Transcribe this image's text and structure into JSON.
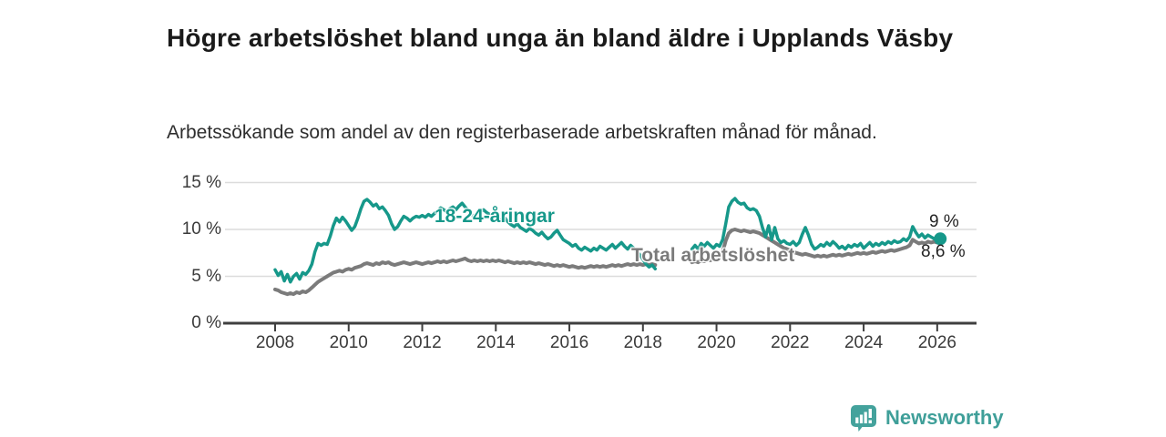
{
  "chart_data": {
    "type": "line",
    "title": "Högre arbetslöshet bland unga än bland äldre i Upplands Väsby",
    "subtitle": "Arbetssökande som andel av den registerbaserade arbetskraften månad för månad.",
    "unit": "%",
    "ylim": [
      0,
      15
    ],
    "xlim": [
      2006.6,
      2027.1
    ],
    "grid": "horizontal",
    "legend_position": "inline-labels",
    "start": {
      "year": 2008,
      "month": 1
    },
    "frequency": "monthly",
    "y_ticks": [
      {
        "value": 0,
        "label": "0 %"
      },
      {
        "value": 5,
        "label": "5 %"
      },
      {
        "value": 10,
        "label": "10 %"
      },
      {
        "value": 15,
        "label": "15 %"
      }
    ],
    "x_ticks": [
      {
        "value": 2008,
        "label": "2008"
      },
      {
        "value": 2010,
        "label": "2010"
      },
      {
        "value": 2012,
        "label": "2012"
      },
      {
        "value": 2014,
        "label": "2014"
      },
      {
        "value": 2016,
        "label": "2016"
      },
      {
        "value": 2018,
        "label": "2018"
      },
      {
        "value": 2020,
        "label": "2020"
      },
      {
        "value": 2022,
        "label": "2022"
      },
      {
        "value": 2024,
        "label": "2024"
      },
      {
        "value": 2026,
        "label": "2026"
      }
    ],
    "series": [
      {
        "name": "18-24-åringar",
        "color": "#16988a",
        "stroke_width": 3.5,
        "end_dot": true,
        "end_label": "9 %",
        "values": [
          5.7,
          5.1,
          5.5,
          4.5,
          5.2,
          4.4,
          5.0,
          5.3,
          4.7,
          5.4,
          5.2,
          5.6,
          6.3,
          7.6,
          8.5,
          8.3,
          8.5,
          8.4,
          9.3,
          10.4,
          11.2,
          10.8,
          11.3,
          10.9,
          10.4,
          9.9,
          10.3,
          11.2,
          12.2,
          13.0,
          13.2,
          12.9,
          12.5,
          12.7,
          12.2,
          12.4,
          12.0,
          11.5,
          10.6,
          10.0,
          10.3,
          10.9,
          11.4,
          11.2,
          10.9,
          11.2,
          11.4,
          11.3,
          11.5,
          11.3,
          11.6,
          11.4,
          11.7,
          12.0,
          12.3,
          12.1,
          11.9,
          12.2,
          12.4,
          12.1,
          12.5,
          12.8,
          12.4,
          12.0,
          11.6,
          11.3,
          11.5,
          11.9,
          12.1,
          11.8,
          11.6,
          11.7,
          11.4,
          11.1,
          10.9,
          11.2,
          10.8,
          10.5,
          10.3,
          10.6,
          10.2,
          10.0,
          9.8,
          10.1,
          9.9,
          9.6,
          9.4,
          9.7,
          9.3,
          9.0,
          9.2,
          9.6,
          9.9,
          9.4,
          8.9,
          8.7,
          8.5,
          8.2,
          8.4,
          8.0,
          7.8,
          8.1,
          7.9,
          7.7,
          8.0,
          7.8,
          8.2,
          8.0,
          7.8,
          8.1,
          8.4,
          8.0,
          8.3,
          8.6,
          8.2,
          7.9,
          8.3,
          8.0,
          7.6,
          7.3,
          6.8,
          6.3,
          6.0,
          6.2,
          5.8,
          null,
          null,
          null,
          null,
          null,
          null,
          null,
          null,
          null,
          null,
          null,
          7.9,
          8.3,
          7.9,
          8.5,
          8.2,
          8.6,
          8.3,
          8.0,
          8.4,
          8.2,
          8.9,
          10.6,
          12.4,
          13.0,
          13.3,
          12.9,
          12.7,
          12.8,
          12.3,
          12.1,
          12.2,
          12.0,
          11.4,
          10.2,
          9.2,
          10.4,
          8.9,
          10.2,
          9.0,
          8.6,
          8.8,
          8.5,
          8.4,
          8.7,
          8.3,
          8.6,
          9.5,
          10.2,
          9.4,
          8.4,
          7.9,
          8.1,
          8.4,
          8.2,
          8.6,
          8.3,
          8.7,
          8.4,
          8.0,
          8.2,
          7.9,
          8.3,
          8.1,
          8.4,
          8.2,
          8.5,
          8.0,
          8.3,
          8.6,
          8.2,
          8.5,
          8.3,
          8.6,
          8.4,
          8.7,
          8.5,
          8.8,
          8.6,
          8.7,
          9.0,
          8.8,
          9.2,
          10.3,
          9.7,
          9.2,
          9.5,
          9.1,
          9.4,
          9.2,
          9.0,
          9.1,
          9.0
        ]
      },
      {
        "name": "Total arbetslöshet",
        "color": "#7b7b7b",
        "stroke_width": 4,
        "end_dot": false,
        "end_label": "8,6 %",
        "values": [
          3.6,
          3.5,
          3.3,
          3.2,
          3.1,
          3.2,
          3.1,
          3.3,
          3.2,
          3.4,
          3.3,
          3.5,
          3.8,
          4.1,
          4.4,
          4.6,
          4.8,
          5.0,
          5.2,
          5.4,
          5.5,
          5.6,
          5.5,
          5.7,
          5.8,
          5.7,
          5.9,
          6.0,
          6.1,
          6.3,
          6.4,
          6.3,
          6.2,
          6.4,
          6.3,
          6.5,
          6.4,
          6.5,
          6.3,
          6.2,
          6.3,
          6.4,
          6.5,
          6.4,
          6.3,
          6.4,
          6.5,
          6.4,
          6.3,
          6.4,
          6.5,
          6.4,
          6.5,
          6.6,
          6.5,
          6.6,
          6.5,
          6.6,
          6.7,
          6.6,
          6.7,
          6.8,
          6.9,
          6.7,
          6.6,
          6.7,
          6.6,
          6.7,
          6.6,
          6.7,
          6.6,
          6.7,
          6.6,
          6.7,
          6.6,
          6.5,
          6.6,
          6.5,
          6.4,
          6.5,
          6.4,
          6.5,
          6.4,
          6.5,
          6.4,
          6.3,
          6.4,
          6.3,
          6.2,
          6.3,
          6.2,
          6.1,
          6.2,
          6.1,
          6.2,
          6.1,
          6.0,
          6.1,
          6.0,
          5.9,
          6.0,
          5.9,
          6.0,
          6.1,
          6.0,
          6.1,
          6.0,
          6.1,
          6.0,
          6.1,
          6.2,
          6.1,
          6.2,
          6.1,
          6.2,
          6.3,
          6.2,
          6.3,
          6.2,
          6.3,
          6.2,
          6.3,
          6.2,
          6.3,
          6.2,
          null,
          null,
          null,
          null,
          null,
          null,
          null,
          null,
          null,
          null,
          null,
          6.5,
          6.6,
          6.5,
          6.7,
          6.6,
          6.8,
          6.7,
          6.9,
          7.0,
          7.1,
          7.6,
          8.8,
          9.6,
          9.9,
          10.0,
          9.9,
          9.8,
          9.9,
          9.8,
          9.7,
          9.8,
          9.7,
          9.6,
          9.4,
          9.2,
          9.0,
          8.8,
          8.6,
          8.4,
          8.2,
          8.0,
          7.9,
          7.8,
          7.6,
          7.5,
          7.4,
          7.3,
          7.4,
          7.3,
          7.2,
          7.1,
          7.2,
          7.1,
          7.2,
          7.1,
          7.2,
          7.3,
          7.2,
          7.3,
          7.2,
          7.3,
          7.4,
          7.3,
          7.4,
          7.5,
          7.4,
          7.5,
          7.4,
          7.5,
          7.6,
          7.5,
          7.6,
          7.7,
          7.6,
          7.7,
          7.8,
          7.7,
          7.8,
          7.9,
          8.0,
          8.1,
          8.3,
          8.9,
          8.7,
          8.5,
          8.6,
          8.5,
          8.7,
          8.6,
          8.7,
          8.6,
          8.6
        ]
      }
    ]
  },
  "footer": {
    "brand": "Newsworthy"
  },
  "colors": {
    "accent_teal": "#16988a",
    "series_gray": "#7b7b7b",
    "axis": "#3f3f3f",
    "gridline": "#dcdcdc",
    "brand_teal": "#3f9f99"
  }
}
